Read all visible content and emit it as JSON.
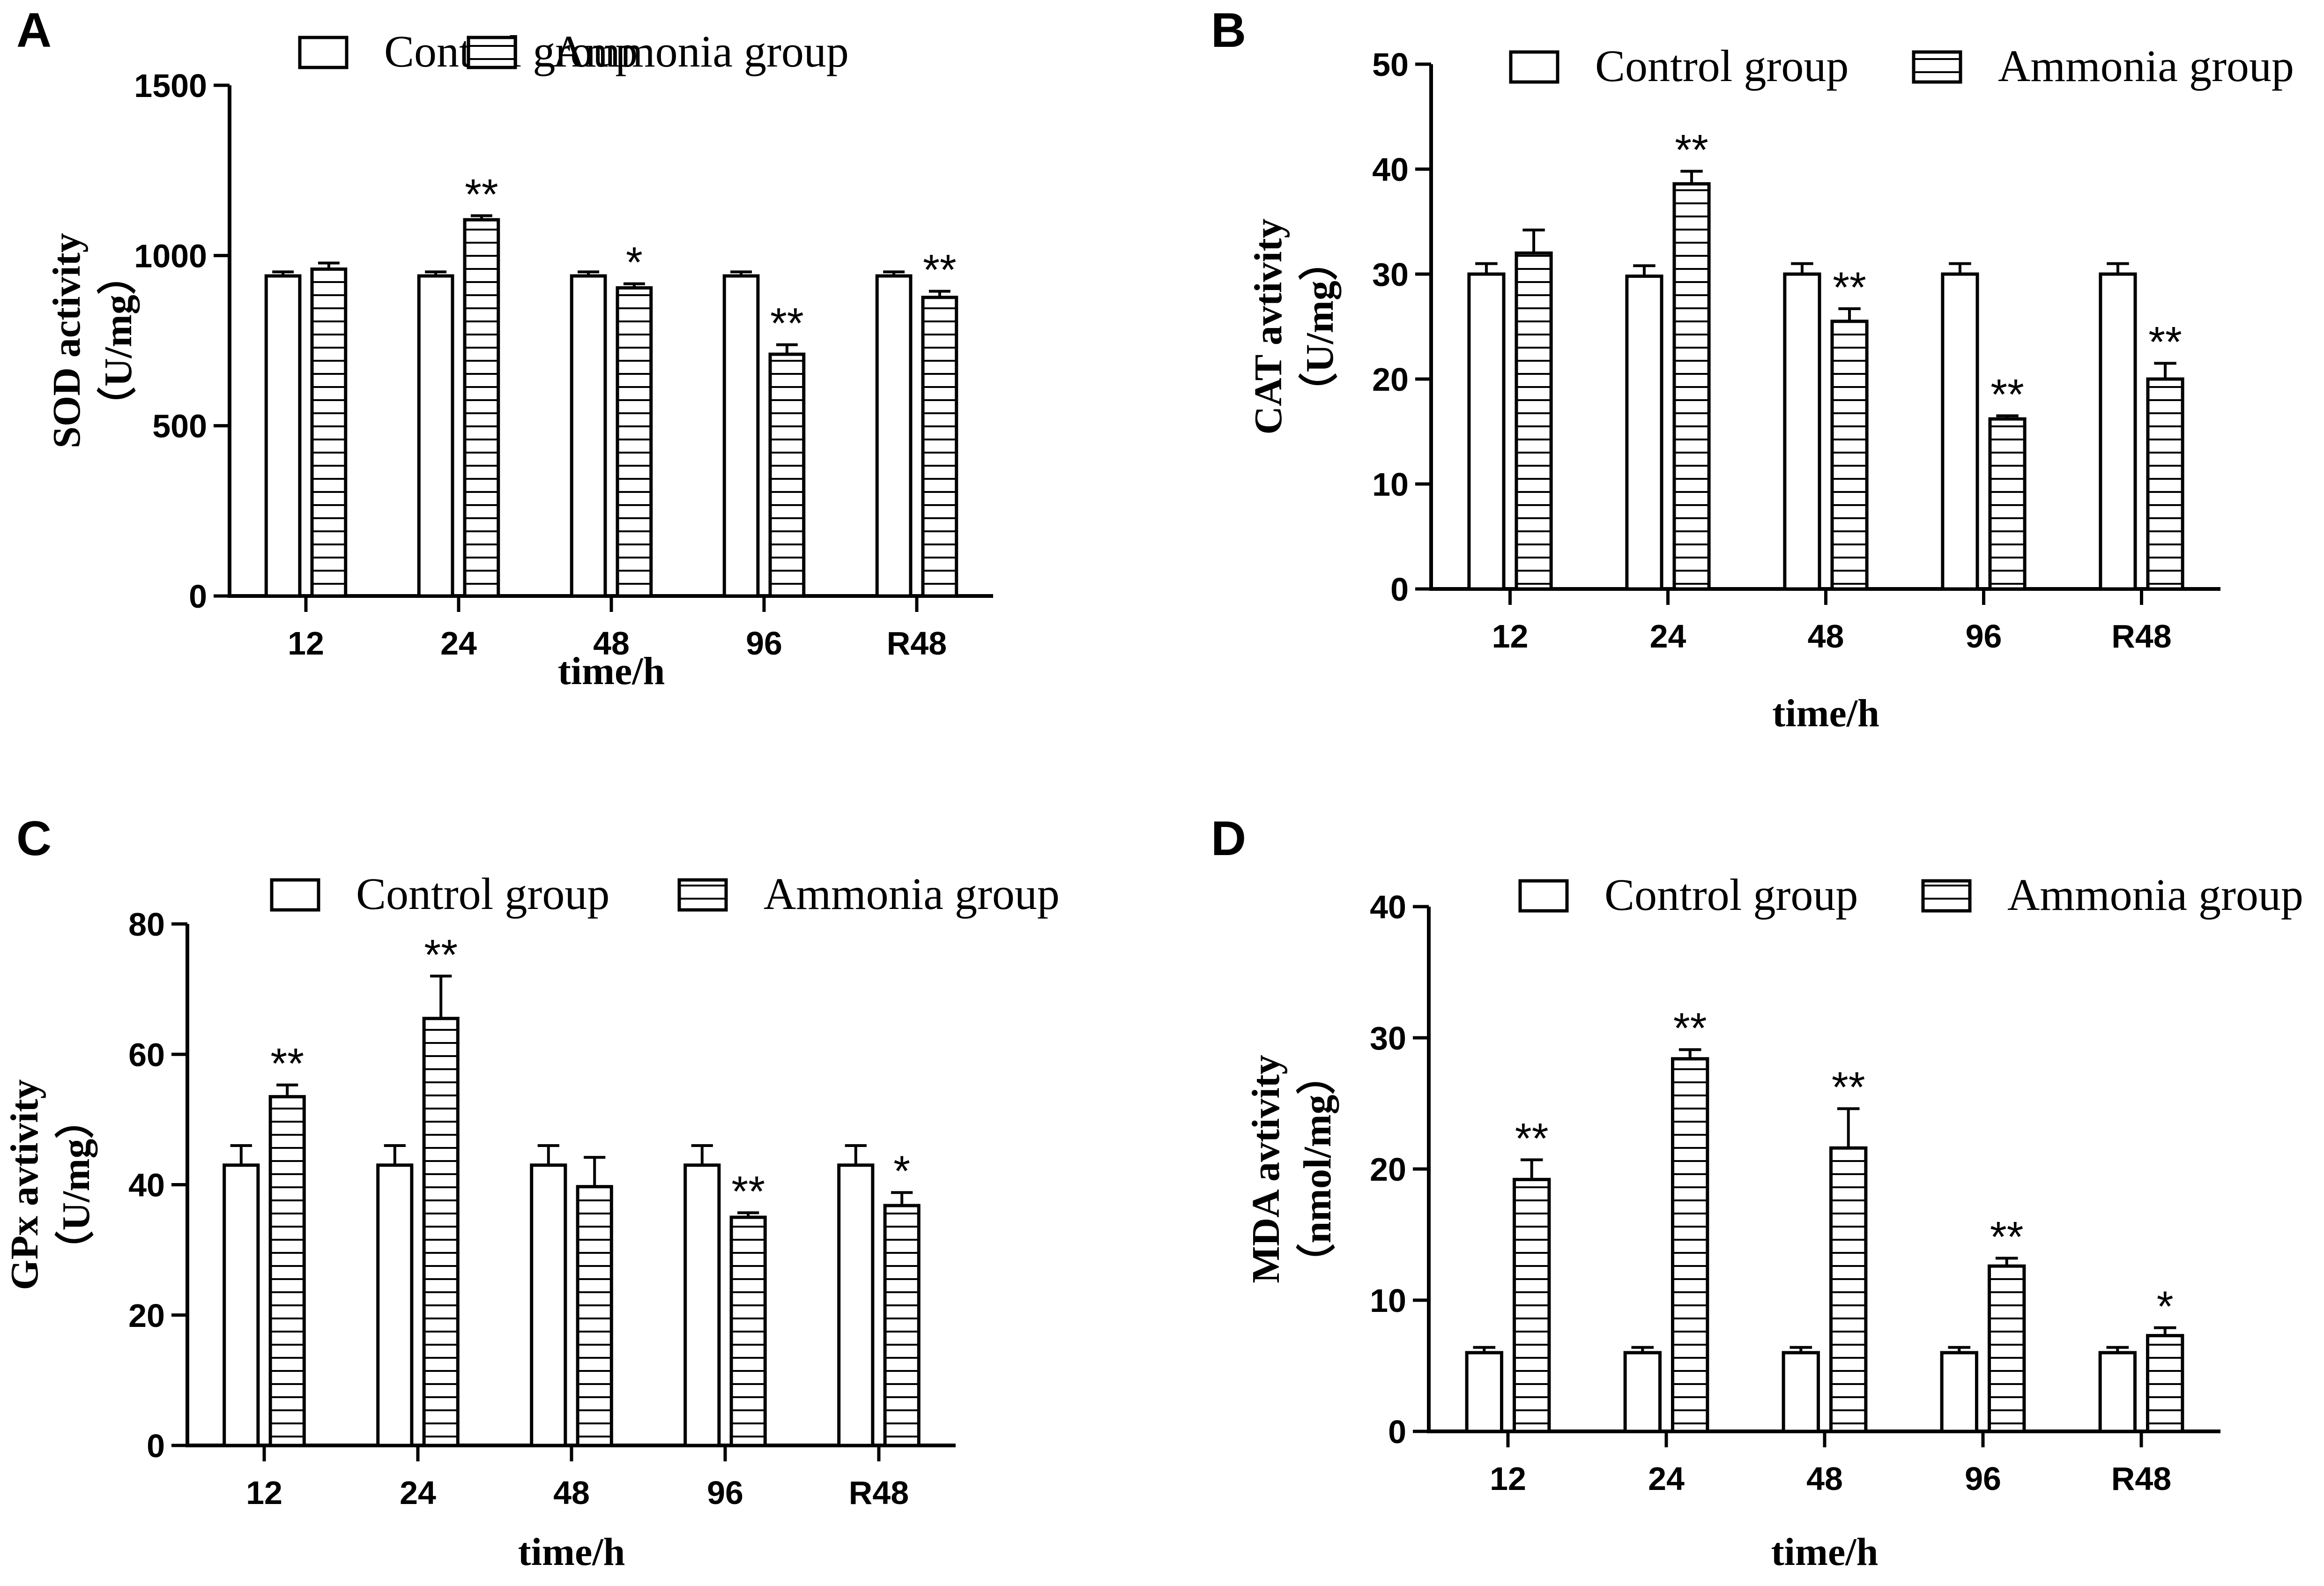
{
  "figure": {
    "legend": {
      "control": "Control group",
      "ammonia": "Ammonia group"
    },
    "pattern": "horizontal-lines"
  },
  "chart_data": [
    {
      "panel": "A",
      "type": "bar",
      "title": "",
      "xlabel": "time/h",
      "ylabel": "SOD activity",
      "yunit": "（U/mg）",
      "categories": [
        "12",
        "24",
        "48",
        "96",
        "R48"
      ],
      "ylim": [
        0,
        1500
      ],
      "yticks": [
        0,
        500,
        1000,
        1500
      ],
      "series": [
        {
          "name": "Control group",
          "values": [
            940,
            940,
            940,
            940,
            940
          ],
          "errors": [
            12,
            12,
            12,
            12,
            12
          ],
          "significance": [
            "",
            "",
            "",
            "",
            ""
          ]
        },
        {
          "name": "Ammonia group",
          "values": [
            960,
            1105,
            905,
            710,
            877
          ],
          "errors": [
            18,
            12,
            12,
            28,
            18
          ],
          "significance": [
            "",
            "**",
            "*",
            "**",
            "**"
          ]
        }
      ]
    },
    {
      "panel": "B",
      "type": "bar",
      "title": "",
      "xlabel": "time/h",
      "ylabel": "CAT avtivity",
      "yunit": "（U/mg）",
      "categories": [
        "12",
        "24",
        "48",
        "96",
        "R48"
      ],
      "ylim": [
        0,
        50
      ],
      "yticks": [
        0,
        10,
        20,
        30,
        40,
        50
      ],
      "series": [
        {
          "name": "Control group",
          "values": [
            30,
            29.8,
            30,
            30,
            30
          ],
          "errors": [
            1.0,
            1.0,
            1.0,
            1.0,
            1.0
          ],
          "significance": [
            "",
            "",
            "",
            "",
            ""
          ]
        },
        {
          "name": "Ammonia group",
          "values": [
            32,
            38.6,
            25.5,
            16.2,
            20
          ],
          "errors": [
            2.2,
            1.2,
            1.2,
            0.3,
            1.5
          ],
          "significance": [
            "",
            "**",
            "**",
            "**",
            "**"
          ]
        }
      ]
    },
    {
      "panel": "C",
      "type": "bar",
      "title": "",
      "xlabel": "time/h",
      "ylabel": "GPx avtivity",
      "yunit": "（U/mg）",
      "categories": [
        "12",
        "24",
        "48",
        "96",
        "R48"
      ],
      "ylim": [
        0,
        80
      ],
      "yticks": [
        0,
        20,
        40,
        60,
        80
      ],
      "series": [
        {
          "name": "Control group",
          "values": [
            43,
            43,
            43,
            43,
            43
          ],
          "errors": [
            3.0,
            3.0,
            3.0,
            3.0,
            3.0
          ],
          "significance": [
            "",
            "",
            "",
            "",
            ""
          ]
        },
        {
          "name": "Ammonia group",
          "values": [
            53.5,
            65.5,
            39.7,
            35,
            36.8
          ],
          "errors": [
            1.8,
            6.5,
            4.5,
            0.7,
            2.0
          ],
          "significance": [
            "**",
            "**",
            "",
            "**",
            "*"
          ]
        }
      ]
    },
    {
      "panel": "D",
      "type": "bar",
      "title": "",
      "xlabel": "time/h",
      "ylabel": "MDA avtivity",
      "yunit": "（nmol/mg）",
      "categories": [
        "12",
        "24",
        "48",
        "96",
        "R48"
      ],
      "ylim": [
        0,
        40
      ],
      "yticks": [
        0,
        10,
        20,
        30,
        40
      ],
      "series": [
        {
          "name": "Control group",
          "values": [
            6.0,
            6.0,
            6.0,
            6.0,
            6.0
          ],
          "errors": [
            0.4,
            0.4,
            0.4,
            0.4,
            0.4
          ],
          "significance": [
            "",
            "",
            "",
            "",
            ""
          ]
        },
        {
          "name": "Ammonia group",
          "values": [
            19.2,
            28.4,
            21.6,
            12.6,
            7.3
          ],
          "errors": [
            1.5,
            0.7,
            3.0,
            0.6,
            0.6
          ],
          "significance": [
            "**",
            "**",
            "**",
            "**",
            "*"
          ]
        }
      ]
    }
  ]
}
